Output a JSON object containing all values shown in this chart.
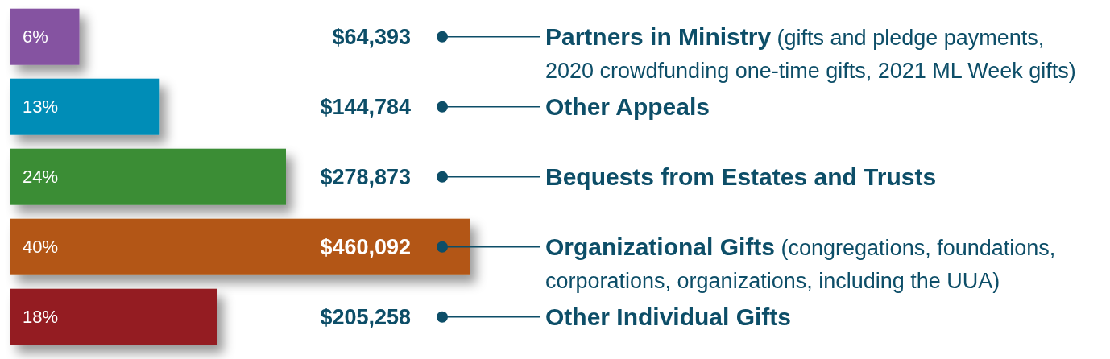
{
  "chart_data": {
    "type": "bar",
    "orientation": "horizontal",
    "categories": [
      "Partners in Ministry (gifts and pledge payments, 2020 crowdfunding one-time gifts, 2021 ML Week gifts)",
      "Other Appeals",
      "Bequests from Estates and Trusts",
      "Organizational Gifts (congregations, foundations, corporations, organizations, including the UUA)",
      "Other Individual Gifts"
    ],
    "values": [
      6,
      13,
      24,
      40,
      18
    ],
    "colors": [
      "#8552a1",
      "#008db7",
      "#3a8d35",
      "#b35713",
      "#941b21"
    ],
    "value_labels": [
      "6%",
      "13%",
      "24%",
      "40%",
      "18%"
    ],
    "annotations": [
      "$64,393",
      "$144,784",
      "$278,873",
      "$460,092",
      "$205,258"
    ]
  }
}
